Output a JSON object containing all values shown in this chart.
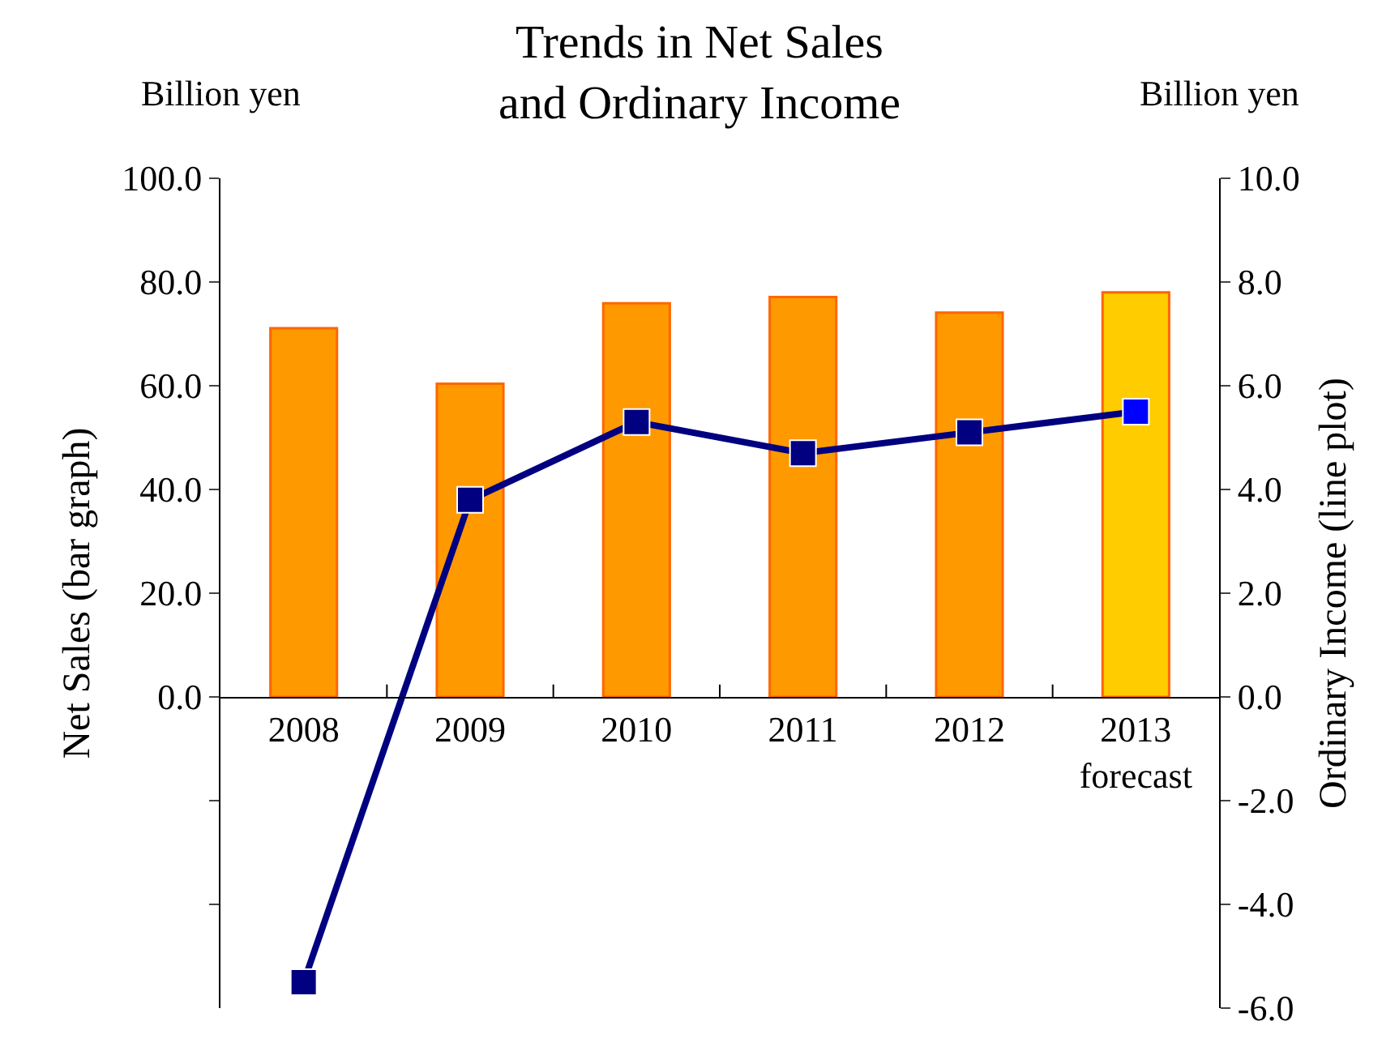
{
  "chart_data": {
    "type": "bar",
    "title": "Trends in Net Sales\nand Ordinary Income",
    "ylabel": "Net Sales (bar graph)",
    "y2label": "Ordinary Income (line plot)",
    "annotations": [
      "Billion yen",
      "Billion yen"
    ],
    "categories": [
      "2008",
      "2009",
      "2010",
      "2011",
      "2012",
      "2013\nforecast"
    ],
    "series": [
      {
        "colors": [
          "#ff9900",
          "#ff9900",
          "#ff9900",
          "#ff9900",
          "#ff9900",
          "#ffcc00"
        ],
        "values": [
          71.1,
          60.4,
          75.9,
          77.1,
          74.1,
          78.0
        ]
      },
      {
        "type": "line",
        "axis": "y2",
        "color": "#000080",
        "colors": [
          "#000080",
          "#000080",
          "#000080",
          "#000080",
          "#000080",
          "#0000ff"
        ],
        "values": [
          -5.5,
          3.8,
          5.3,
          4.7,
          5.1,
          5.5
        ]
      }
    ],
    "ylim": [
      -60,
      100
    ],
    "yticks": [
      {
        "value": -40,
        "label": null
      },
      {
        "value": -20,
        "label": null
      },
      {
        "value": 0,
        "label": "0.0"
      },
      {
        "value": 20,
        "label": "20.0"
      },
      {
        "value": 40,
        "label": "40.0"
      },
      {
        "value": 60,
        "label": "60.0"
      },
      {
        "value": 80,
        "label": "80.0"
      },
      {
        "value": 100,
        "label": "100.0"
      }
    ],
    "y2lim": [
      -6,
      10
    ],
    "y2ticks": [
      {
        "value": -6,
        "label": "-6.0"
      },
      {
        "value": -4,
        "label": "-4.0"
      },
      {
        "value": -2,
        "label": "-2.0"
      },
      {
        "value": 0,
        "label": "0.0"
      },
      {
        "value": 2,
        "label": "2.0"
      },
      {
        "value": 4,
        "label": "4.0"
      },
      {
        "value": 6,
        "label": "6.0"
      },
      {
        "value": 8,
        "label": "8.0"
      },
      {
        "value": 10,
        "label": "10.0"
      }
    ],
    "grid": false,
    "marker": "square",
    "line_style": "solid"
  }
}
